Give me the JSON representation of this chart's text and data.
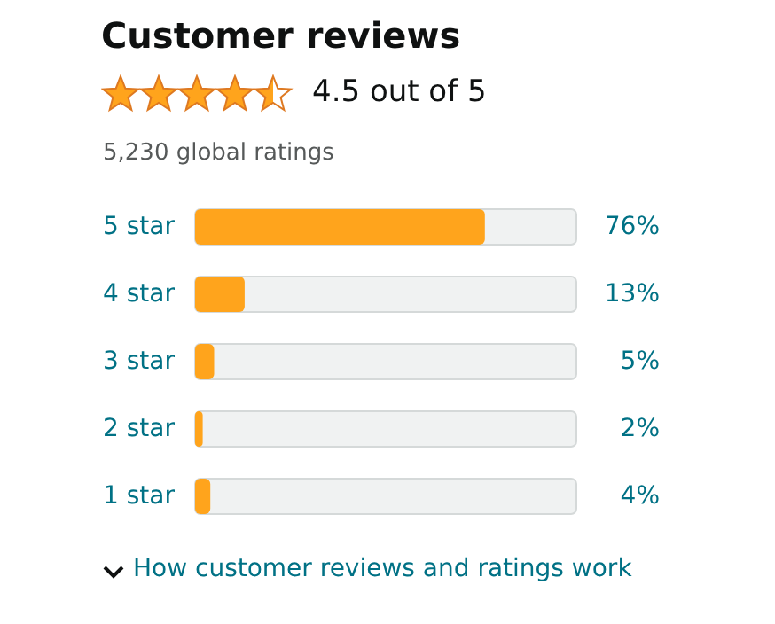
{
  "chart_data": {
    "type": "bar",
    "orientation": "horizontal",
    "title": "Customer reviews",
    "subtitle": "4.5 out of 5",
    "annotations": [
      "5,230 global ratings",
      "How customer reviews and ratings work"
    ],
    "categories": [
      "5 star",
      "4 star",
      "3 star",
      "2 star",
      "1 star"
    ],
    "values": [
      76,
      13,
      5,
      2,
      4
    ],
    "value_labels": [
      "76%",
      "13%",
      "5%",
      "2%",
      "4%"
    ],
    "color": "#ffa41c",
    "xlim": [
      0,
      100
    ],
    "tick_labels": "y"
  }
}
